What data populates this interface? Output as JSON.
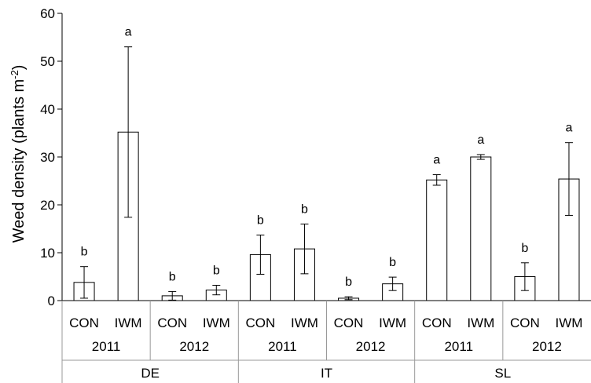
{
  "chart_data": {
    "type": "bar",
    "ylabel": "Weed density (plants m",
    "ylabel_sup": "-2",
    "ylabel_close": ")",
    "ylim": [
      0,
      60
    ],
    "yticks": [
      0,
      10,
      20,
      30,
      40,
      50,
      60
    ],
    "grid": false,
    "categories": [
      {
        "treatment": "CON",
        "year": "2011",
        "site": "DE",
        "value": 3.8,
        "error": 3.3,
        "letter": "b"
      },
      {
        "treatment": "IWM",
        "year": "2011",
        "site": "DE",
        "value": 35.2,
        "error": 17.8,
        "letter": "a"
      },
      {
        "treatment": "CON",
        "year": "2012",
        "site": "DE",
        "value": 1.0,
        "error": 0.9,
        "letter": "b"
      },
      {
        "treatment": "IWM",
        "year": "2012",
        "site": "DE",
        "value": 2.2,
        "error": 1.0,
        "letter": "b"
      },
      {
        "treatment": "CON",
        "year": "2011",
        "site": "IT",
        "value": 9.6,
        "error": 4.1,
        "letter": "b"
      },
      {
        "treatment": "IWM",
        "year": "2011",
        "site": "IT",
        "value": 10.8,
        "error": 5.2,
        "letter": "b"
      },
      {
        "treatment": "CON",
        "year": "2012",
        "site": "IT",
        "value": 0.5,
        "error": 0.3,
        "letter": "b"
      },
      {
        "treatment": "IWM",
        "year": "2012",
        "site": "IT",
        "value": 3.5,
        "error": 1.4,
        "letter": "b"
      },
      {
        "treatment": "CON",
        "year": "2011",
        "site": "SL",
        "value": 25.2,
        "error": 1.1,
        "letter": "a"
      },
      {
        "treatment": "IWM",
        "year": "2011",
        "site": "SL",
        "value": 30.0,
        "error": 0.5,
        "letter": "a"
      },
      {
        "treatment": "CON",
        "year": "2012",
        "site": "SL",
        "value": 5.0,
        "error": 2.9,
        "letter": "b"
      },
      {
        "treatment": "IWM",
        "year": "2012",
        "site": "SL",
        "value": 25.4,
        "error": 7.6,
        "letter": "a"
      }
    ],
    "year_groups": [
      "2011",
      "2012",
      "2011",
      "2012",
      "2011",
      "2012"
    ],
    "site_groups": [
      "DE",
      "IT",
      "SL"
    ]
  }
}
